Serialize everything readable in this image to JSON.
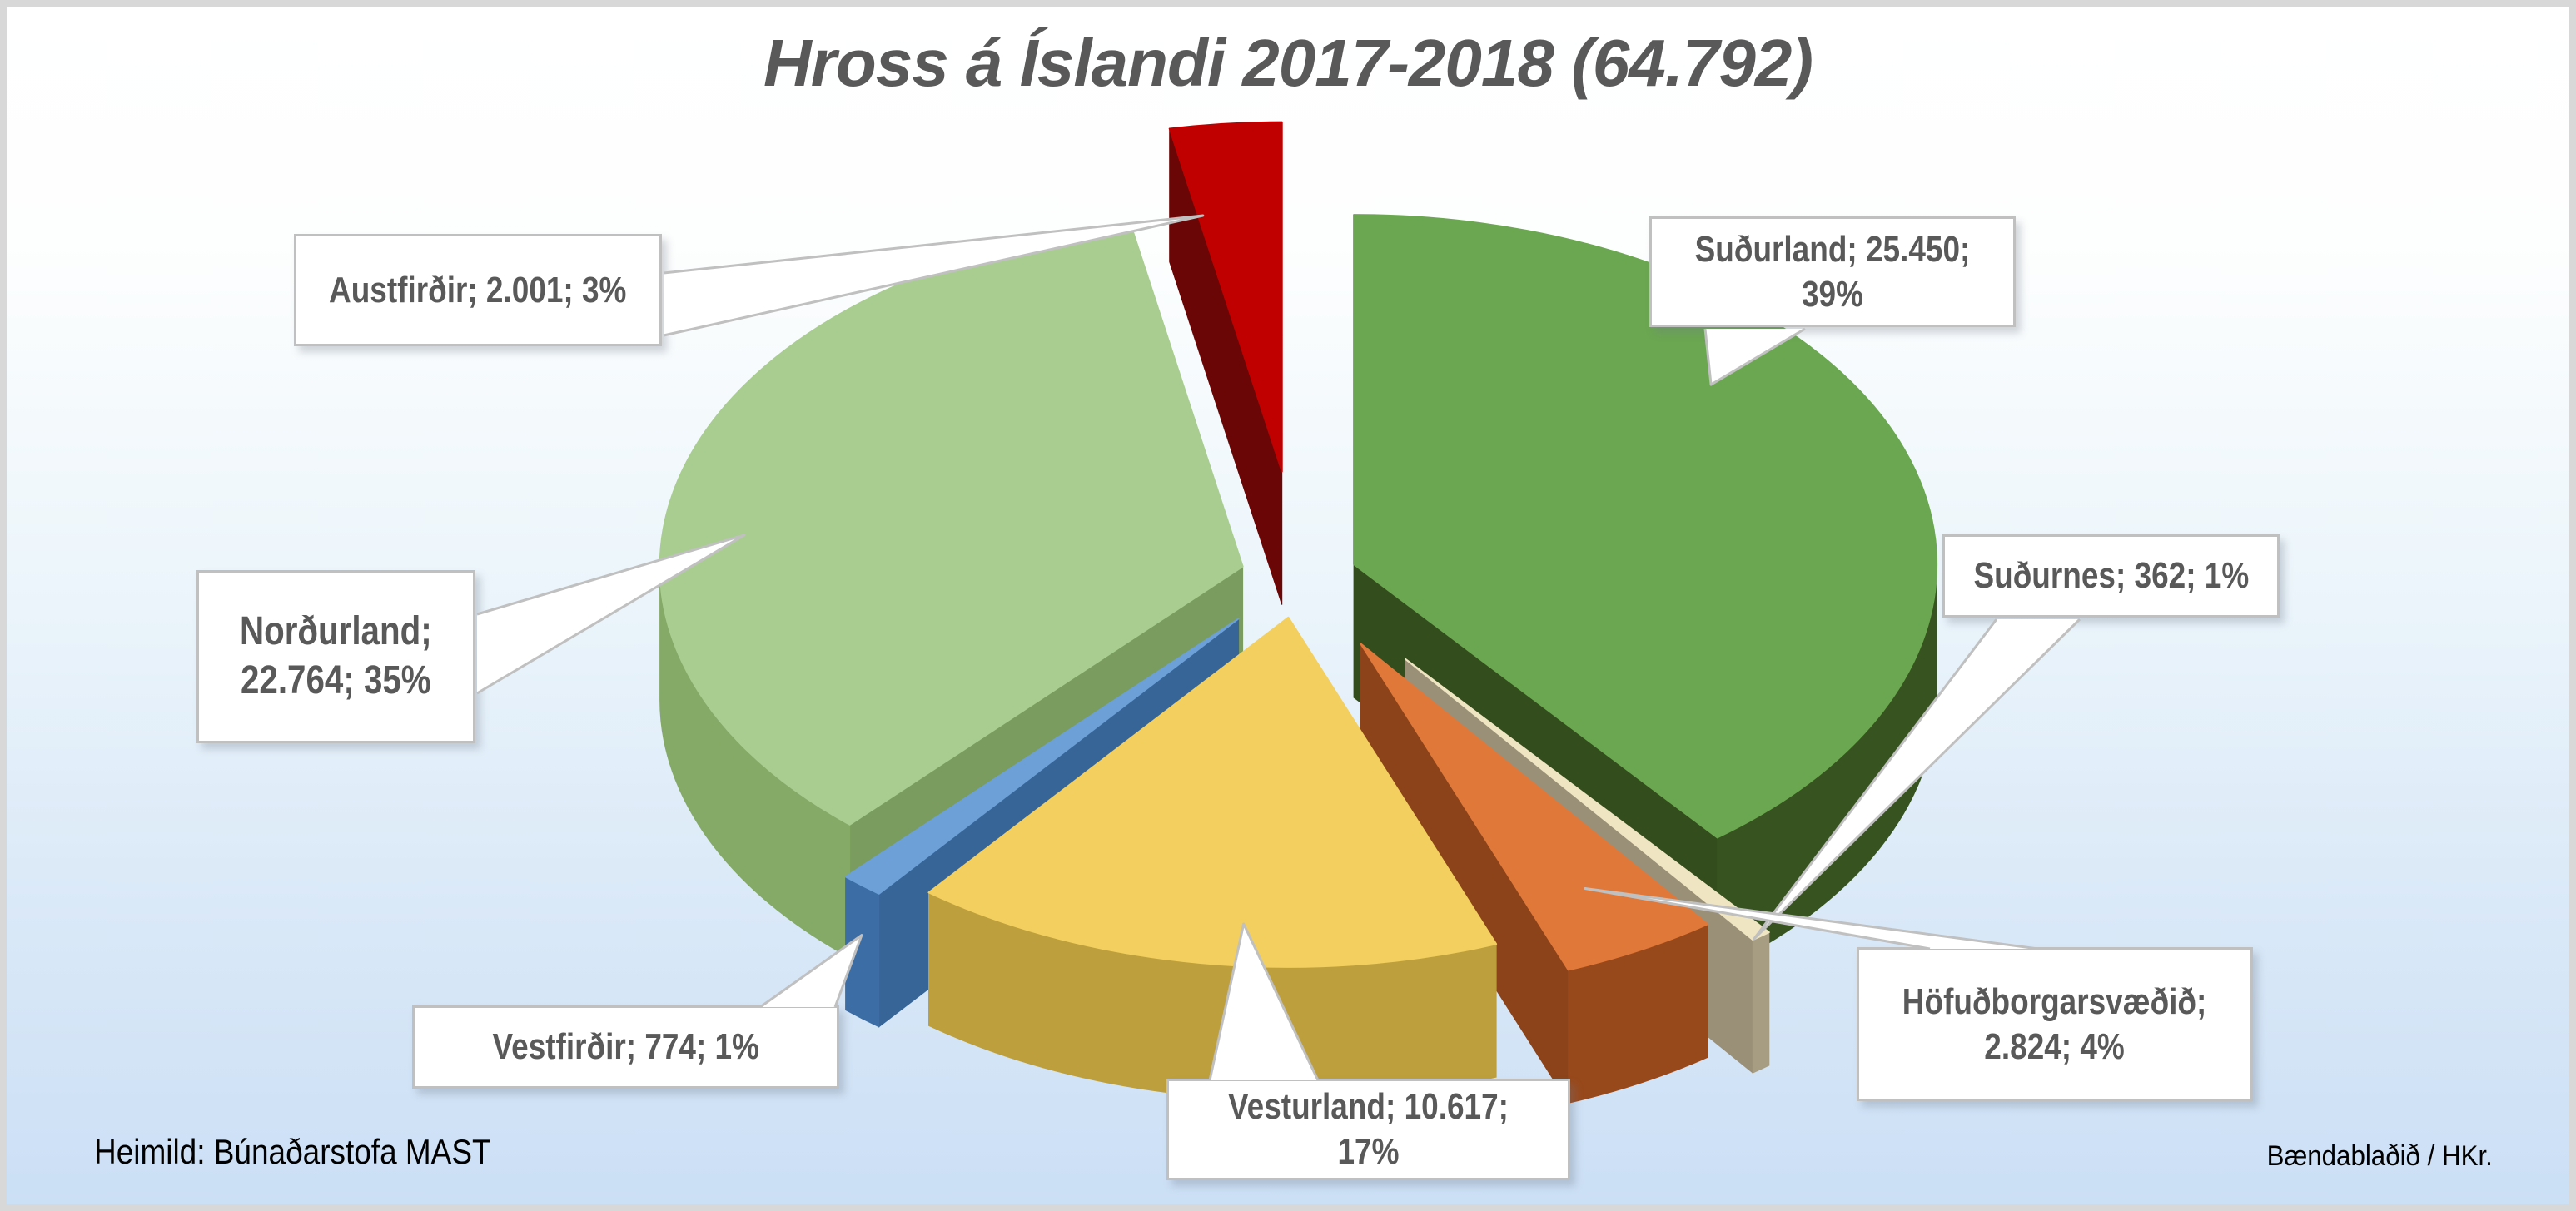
{
  "chart_data": {
    "type": "pie",
    "style": "3d-exploded",
    "title": "Hross á Íslandi 2017-2018 (64.792)",
    "total": 64792,
    "total_label": "64.792",
    "legend_position": "none",
    "labels_style": "callout",
    "slices": [
      {
        "name": "Suðurland",
        "value": 25450,
        "value_label": "25.450",
        "percent": 39,
        "percent_label": "39%",
        "label": "Suðurland; 25.450; 39%",
        "color": "#6BA751",
        "side_color": "#375420"
      },
      {
        "name": "Suðurnes",
        "value": 362,
        "value_label": "362",
        "percent": 1,
        "percent_label": "1%",
        "label": "Suðurnes; 362; 1%",
        "color": "#F0E5C2",
        "side_color": "#A79D82"
      },
      {
        "name": "Höfuðborgarsvæðið",
        "value": 2824,
        "value_label": "2.824",
        "percent": 4,
        "percent_label": "4%",
        "label": "Höfuðborgarsvæðið;\n2.824; 4%",
        "color": "#E0783A",
        "side_color": "#98491B"
      },
      {
        "name": "Vesturland",
        "value": 10617,
        "value_label": "10.617",
        "percent": 17,
        "percent_label": "17%",
        "label": "Vesturland; 10.617; 17%",
        "color": "#F2CF5F",
        "side_color": "#BD9F3D"
      },
      {
        "name": "Vestfirðir",
        "value": 774,
        "value_label": "774",
        "percent": 1,
        "percent_label": "1%",
        "label": "Vestfirðir; 774; 1%",
        "color": "#6CA0D6",
        "side_color": "#3C6EA5"
      },
      {
        "name": "Norðurland",
        "value": 22764,
        "value_label": "22.764",
        "percent": 35,
        "percent_label": "35%",
        "label": "Norðurland;\n22.764; 35%",
        "color": "#A9CD90",
        "side_color": "#85AA67"
      },
      {
        "name": "Austfirðir",
        "value": 2001,
        "value_label": "2.001",
        "percent": 3,
        "percent_label": "3%",
        "label": "Austfirðir; 2.001; 3%",
        "color": "#C00000",
        "side_color": "#740606"
      }
    ],
    "source": "Heimild: Búnaðarstofa MAST",
    "credit": "Bændablaðið / HKr.",
    "colors": {
      "background_top": "#FFFFFF",
      "background_bottom": "#CBDFF5",
      "frame": "#D8D8D8",
      "callout_background": "#FFFFFF",
      "callout_border": "#C0C0C0",
      "text": "#595959"
    }
  }
}
